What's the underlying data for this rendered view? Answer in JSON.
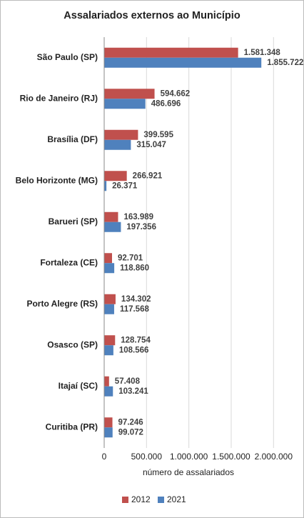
{
  "chart_data": {
    "type": "bar",
    "orientation": "horizontal",
    "title": "Assalariados externos ao Município",
    "x_label": "número de assalariados",
    "categories": [
      "São Paulo (SP)",
      "Rio de Janeiro (RJ)",
      "Brasília (DF)",
      "Belo Horizonte (MG)",
      "Barueri (SP)",
      "Fortaleza (CE)",
      "Porto Alegre (RS)",
      "Osasco (SP)",
      "Itajaí (SC)",
      "Curitiba (PR)"
    ],
    "series": [
      {
        "name": "2012",
        "color": "#c0504d",
        "values": [
          1581348,
          594662,
          399595,
          266921,
          163989,
          92701,
          134302,
          128754,
          57408,
          97246
        ],
        "value_labels": [
          "1.581.348",
          "594.662",
          "399.595",
          "266.921",
          "163.989",
          "92.701",
          "134.302",
          "128.754",
          "57.408",
          "97.246"
        ]
      },
      {
        "name": "2021",
        "color": "#4f81bd",
        "values": [
          1855722,
          486696,
          315047,
          26371,
          197356,
          118860,
          117568,
          108566,
          103241,
          99072
        ],
        "value_labels": [
          "1.855.722",
          "486.696",
          "315.047",
          "26.371",
          "197.356",
          "118.860",
          "117.568",
          "108.566",
          "103.241",
          "99.072"
        ]
      }
    ],
    "xlim": [
      0,
      2250000
    ],
    "xticks": [
      0,
      {
        "value": 500000,
        "label": "500.000"
      },
      {
        "value": 1000000,
        "label": "1.000.000"
      },
      {
        "value": 1500000,
        "label": "1.500.000"
      },
      {
        "value": 2000000,
        "label": "2.000.000"
      }
    ],
    "grid": true,
    "legend": "bottom"
  }
}
